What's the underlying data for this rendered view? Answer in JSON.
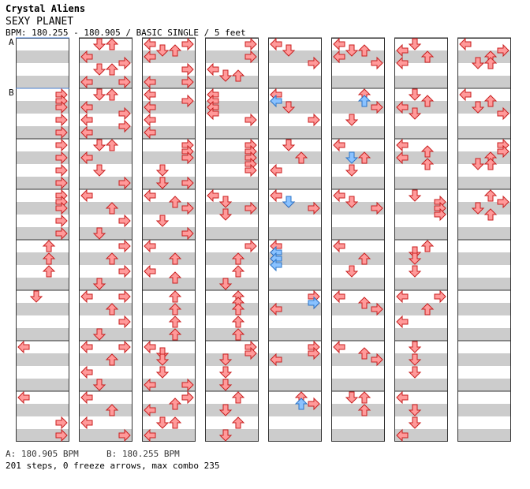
{
  "header": {
    "artist": "Crystal Aliens",
    "title": "SEXY PLANET",
    "bpm_line": "BPM: 180.255 - 180.905 / BASIC SINGLE / 5 feet"
  },
  "markers": {
    "a": "A",
    "b": "B"
  },
  "footer": {
    "bpm_a": "A: 180.905 BPM",
    "bpm_b": "B: 180.255 BPM",
    "stats": "201 steps, 0 freeze arrows, max combo 235"
  },
  "colors": {
    "note": "#ff9a9a",
    "note_stroke": "#c81e1e",
    "blue": "#8ac2ff",
    "blue_stroke": "#2a74c8",
    "band": "#cccccc"
  },
  "chart_data": {
    "type": "table",
    "columns": 8,
    "measures_per_column": 8,
    "lane_order": [
      "left",
      "down",
      "up",
      "right"
    ],
    "notes": [
      [
        [],
        [
          [
            0,
            "R"
          ],
          [
            2,
            "R"
          ],
          [
            4,
            "R"
          ],
          [
            8,
            "R"
          ],
          [
            12,
            "R"
          ]
        ],
        [
          [
            0,
            "R"
          ],
          [
            4,
            "R"
          ],
          [
            8,
            "R"
          ],
          [
            12,
            "R"
          ]
        ],
        [
          [
            0,
            "R"
          ],
          [
            2,
            "R"
          ],
          [
            4,
            "R"
          ],
          [
            8,
            "R"
          ],
          [
            12,
            "R"
          ]
        ],
        [
          [
            0,
            "U"
          ],
          [
            4,
            "U"
          ],
          [
            8,
            "U"
          ]
        ],
        [
          [
            0,
            "D"
          ]
        ],
        [
          [
            0,
            "L"
          ]
        ],
        [
          [
            0,
            "L"
          ],
          [
            8,
            "R"
          ],
          [
            12,
            "R"
          ]
        ]
      ],
      [
        [
          [
            0,
            "D"
          ],
          [
            0,
            "U"
          ],
          [
            4,
            "L"
          ],
          [
            6,
            "R"
          ],
          [
            8,
            "D"
          ],
          [
            8,
            "U"
          ],
          [
            12,
            "L"
          ],
          [
            12,
            "R"
          ]
        ],
        [
          [
            0,
            "D"
          ],
          [
            0,
            "U"
          ],
          [
            4,
            "L"
          ],
          [
            6,
            "R"
          ],
          [
            8,
            "L"
          ],
          [
            10,
            "R"
          ],
          [
            12,
            "L"
          ]
        ],
        [
          [
            0,
            "D"
          ],
          [
            0,
            "U"
          ],
          [
            4,
            "L"
          ],
          [
            8,
            "D"
          ],
          [
            12,
            "R"
          ]
        ],
        [
          [
            0,
            "L"
          ],
          [
            4,
            "U"
          ],
          [
            8,
            "R"
          ],
          [
            12,
            "D"
          ]
        ],
        [
          [
            0,
            "R"
          ],
          [
            4,
            "U"
          ],
          [
            8,
            "R"
          ],
          [
            12,
            "D"
          ]
        ],
        [
          [
            0,
            "L"
          ],
          [
            0,
            "R"
          ],
          [
            4,
            "U"
          ],
          [
            8,
            "R"
          ],
          [
            12,
            "D"
          ]
        ],
        [
          [
            0,
            "L"
          ],
          [
            0,
            "R"
          ],
          [
            4,
            "U"
          ],
          [
            8,
            "L"
          ],
          [
            12,
            "D"
          ]
        ],
        [
          [
            0,
            "L"
          ],
          [
            4,
            "U"
          ],
          [
            8,
            "L"
          ],
          [
            12,
            "R"
          ]
        ]
      ],
      [
        [
          [
            0,
            "L"
          ],
          [
            0,
            "R"
          ],
          [
            2,
            "D"
          ],
          [
            2,
            "U"
          ],
          [
            4,
            "L"
          ],
          [
            8,
            "R"
          ],
          [
            12,
            "L"
          ],
          [
            12,
            "R"
          ]
        ],
        [
          [
            0,
            "L"
          ],
          [
            2,
            "R"
          ],
          [
            4,
            "L"
          ],
          [
            8,
            "L"
          ],
          [
            12,
            "L"
          ]
        ],
        [
          [
            0,
            "R"
          ],
          [
            2,
            "R"
          ],
          [
            4,
            "R"
          ],
          [
            8,
            "D"
          ],
          [
            12,
            "D"
          ],
          [
            12,
            "R"
          ]
        ],
        [
          [
            0,
            "L"
          ],
          [
            2,
            "U"
          ],
          [
            4,
            "R"
          ],
          [
            8,
            "D"
          ],
          [
            12,
            "R"
          ]
        ],
        [
          [
            0,
            "L"
          ],
          [
            4,
            "U"
          ],
          [
            8,
            "L"
          ],
          [
            10,
            "U"
          ]
        ],
        [
          [
            0,
            "U"
          ],
          [
            4,
            "U"
          ],
          [
            8,
            "U"
          ],
          [
            12,
            "U"
          ]
        ],
        [
          [
            0,
            "L"
          ],
          [
            2,
            "D"
          ],
          [
            4,
            "D"
          ],
          [
            8,
            "D"
          ],
          [
            12,
            "L"
          ],
          [
            12,
            "R"
          ]
        ],
        [
          [
            0,
            "R"
          ],
          [
            2,
            "U"
          ],
          [
            4,
            "L"
          ],
          [
            8,
            "D"
          ],
          [
            8,
            "U"
          ],
          [
            12,
            "L"
          ]
        ]
      ],
      [
        [
          [
            0,
            "R"
          ],
          [
            4,
            "R"
          ],
          [
            8,
            "L"
          ],
          [
            10,
            "D"
          ],
          [
            10,
            "U"
          ]
        ],
        [
          [
            0,
            "L"
          ],
          [
            2,
            "L"
          ],
          [
            4,
            "L"
          ],
          [
            6,
            "L"
          ],
          [
            8,
            "R"
          ]
        ],
        [
          [
            0,
            "R"
          ],
          [
            2,
            "R"
          ],
          [
            4,
            "R"
          ],
          [
            6,
            "R"
          ],
          [
            8,
            "R"
          ]
        ],
        [
          [
            0,
            "L"
          ],
          [
            2,
            "D"
          ],
          [
            4,
            "R"
          ],
          [
            6,
            "D"
          ]
        ],
        [
          [
            0,
            "R"
          ],
          [
            4,
            "U"
          ],
          [
            8,
            "U"
          ],
          [
            12,
            "D"
          ]
        ],
        [
          [
            0,
            "U"
          ],
          [
            2,
            "U"
          ],
          [
            4,
            "U"
          ],
          [
            8,
            "U"
          ],
          [
            12,
            "U"
          ]
        ],
        [
          [
            0,
            "R"
          ],
          [
            2,
            "R"
          ],
          [
            4,
            "D"
          ],
          [
            8,
            "D"
          ],
          [
            12,
            "D"
          ]
        ],
        [
          [
            0,
            "U"
          ],
          [
            4,
            "D"
          ],
          [
            8,
            "U"
          ],
          [
            12,
            "D"
          ]
        ]
      ],
      [
        [
          [
            0,
            "L"
          ],
          [
            2,
            "D"
          ],
          [
            6,
            "R"
          ]
        ],
        [
          [
            0,
            "L"
          ],
          [
            0,
            "L"
          ],
          [
            4,
            "D"
          ],
          [
            8,
            "R"
          ]
        ],
        [
          [
            0,
            "D"
          ],
          [
            4,
            "U"
          ],
          [
            8,
            "L"
          ]
        ],
        [
          [
            0,
            "L"
          ],
          [
            2,
            "D"
          ],
          [
            4,
            "R"
          ]
        ],
        [
          [
            0,
            "L"
          ],
          [
            2,
            "L"
          ],
          [
            4,
            "L"
          ]
        ],
        [
          [
            0,
            "R"
          ],
          [
            2,
            "R"
          ],
          [
            4,
            "L"
          ]
        ],
        [
          [
            0,
            "R"
          ],
          [
            2,
            "R"
          ],
          [
            4,
            "L"
          ]
        ],
        [
          [
            0,
            "U"
          ],
          [
            2,
            "R"
          ]
        ]
      ],
      [
        [
          [
            0,
            "L"
          ],
          [
            2,
            "D"
          ],
          [
            2,
            "U"
          ],
          [
            4,
            "L"
          ],
          [
            6,
            "R"
          ]
        ],
        [
          [
            0,
            "U"
          ],
          [
            4,
            "R"
          ],
          [
            8,
            "D"
          ]
        ],
        [
          [
            0,
            "L"
          ],
          [
            4,
            "U"
          ],
          [
            8,
            "D"
          ]
        ],
        [
          [
            0,
            "L"
          ],
          [
            2,
            "D"
          ],
          [
            4,
            "R"
          ]
        ],
        [
          [
            0,
            "L"
          ],
          [
            4,
            "U"
          ],
          [
            8,
            "D"
          ]
        ],
        [
          [
            0,
            "L"
          ],
          [
            2,
            "U"
          ],
          [
            4,
            "R"
          ]
        ],
        [
          [
            0,
            "L"
          ],
          [
            2,
            "U"
          ],
          [
            4,
            "R"
          ]
        ],
        [
          [
            0,
            "D"
          ],
          [
            0,
            "U"
          ],
          [
            4,
            "U"
          ]
        ]
      ],
      [
        [
          [
            0,
            "D"
          ],
          [
            2,
            "L"
          ],
          [
            4,
            "U"
          ],
          [
            6,
            "L"
          ]
        ],
        [
          [
            0,
            "D"
          ],
          [
            2,
            "U"
          ],
          [
            4,
            "L"
          ],
          [
            6,
            "D"
          ]
        ],
        [
          [
            0,
            "L"
          ],
          [
            2,
            "U"
          ],
          [
            4,
            "L"
          ],
          [
            6,
            "U"
          ]
        ],
        [
          [
            0,
            "D"
          ],
          [
            2,
            "R"
          ],
          [
            4,
            "R"
          ],
          [
            6,
            "R"
          ]
        ],
        [
          [
            0,
            "U"
          ],
          [
            2,
            "D"
          ],
          [
            4,
            "D"
          ],
          [
            8,
            "D"
          ]
        ],
        [
          [
            0,
            "L"
          ],
          [
            0,
            "R"
          ],
          [
            4,
            "U"
          ],
          [
            8,
            "L"
          ]
        ],
        [
          [
            0,
            "D"
          ],
          [
            4,
            "D"
          ],
          [
            8,
            "D"
          ]
        ],
        [
          [
            0,
            "L"
          ],
          [
            4,
            "D"
          ],
          [
            8,
            "D"
          ],
          [
            12,
            "L"
          ]
        ]
      ],
      [
        [
          [
            0,
            "L"
          ],
          [
            2,
            "R"
          ],
          [
            4,
            "U"
          ],
          [
            6,
            "D"
          ],
          [
            6,
            "U"
          ]
        ],
        [
          [
            0,
            "L"
          ],
          [
            2,
            "U"
          ],
          [
            4,
            "D"
          ],
          [
            6,
            "R"
          ]
        ],
        [
          [
            0,
            "R"
          ],
          [
            2,
            "R"
          ],
          [
            4,
            "U"
          ],
          [
            6,
            "D"
          ],
          [
            6,
            "U"
          ]
        ],
        [
          [
            0,
            "U"
          ],
          [
            2,
            "R"
          ],
          [
            4,
            "D"
          ],
          [
            6,
            "U"
          ]
        ],
        [],
        [],
        [],
        []
      ]
    ],
    "blue_notes": [
      [
        4,
        1,
        [
          [
            2,
            "L"
          ]
        ]
      ],
      [
        4,
        3,
        [
          [
            2,
            "D"
          ]
        ]
      ],
      [
        4,
        4,
        [
          [
            2,
            "L"
          ],
          [
            4,
            "L"
          ],
          [
            6,
            "L"
          ]
        ]
      ],
      [
        4,
        5,
        [
          [
            2,
            "R"
          ]
        ]
      ],
      [
        4,
        7,
        [
          [
            2,
            "U"
          ]
        ]
      ],
      [
        5,
        1,
        [
          [
            2,
            "U"
          ]
        ]
      ],
      [
        5,
        2,
        [
          [
            4,
            "D"
          ]
        ]
      ]
    ]
  }
}
